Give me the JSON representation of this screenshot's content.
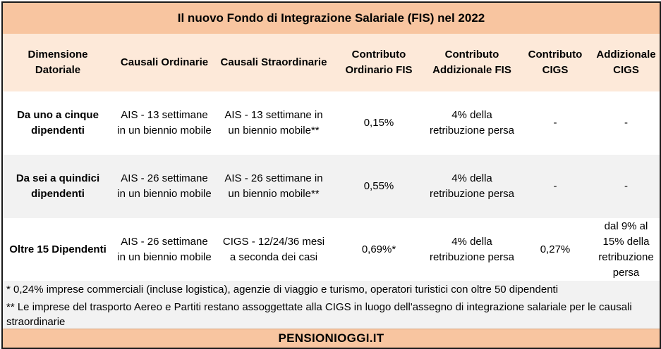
{
  "title": "Il nuovo Fondo di Integrazione Salariale (FIS) nel 2022",
  "headers": [
    "Dimensione Datoriale",
    "Causali Ordinarie",
    "Causali Straordinarie",
    "Contributo Ordinario FIS",
    "Contributo Addizionale FIS",
    "Contributo CIGS",
    "Addizionale CIGS"
  ],
  "rows": [
    [
      "Da uno a cinque dipendenti",
      "AIS - 13 settimane in un biennio mobile",
      "AIS - 13 settimane in un biennio mobile**",
      "0,15%",
      "4% della retribuzione persa",
      "-",
      "-"
    ],
    [
      "Da sei a quindici dipendenti",
      "AIS - 26 settimane in un biennio mobile",
      "AIS - 26 settimane in un biennio mobile**",
      "0,55%",
      "4% della retribuzione persa",
      "-",
      "-"
    ],
    [
      "Oltre 15 Dipendenti",
      "AIS - 26 settimane in un biennio mobile",
      "CIGS - 12/24/36 mesi a seconda dei casi",
      "0,69%*",
      "4% della retribuzione persa",
      "0,27%",
      "dal 9% al 15% della retribuzione persa"
    ]
  ],
  "notes": [
    "* 0,24% imprese commerciali (incluse logistica), agenzie di viaggio e turismo, operatori turistici con oltre 50 dipendenti",
    "** Le imprese del trasporto Aereo e Partiti restano assoggettate alla CIGS in luogo dell'assegno di integrazione salariale per le causali straordinarie"
  ],
  "footer": "PENSIONIOGGI.IT"
}
